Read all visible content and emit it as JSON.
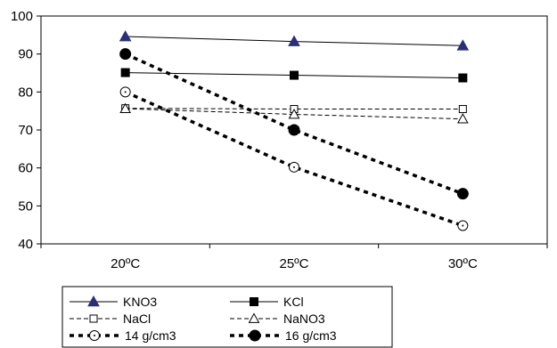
{
  "chart_data": {
    "type": "line",
    "title": "",
    "xlabel": "",
    "ylabel": "",
    "categories": [
      "20ºC",
      "25ºC",
      "30ºC"
    ],
    "ylim": [
      40,
      100
    ],
    "yticks": [
      "40",
      "50",
      "60",
      "70",
      "80",
      "90",
      "100"
    ],
    "grid": false,
    "legend_position": "bottom",
    "series": [
      {
        "name": "KNO3",
        "values": [
          94.6,
          93.3,
          92.2
        ],
        "line": "solid",
        "marker": "filled-triangle",
        "color": "#000000",
        "marker_color": "#2b2f7a"
      },
      {
        "name": "KCl",
        "values": [
          85.1,
          84.4,
          83.7
        ],
        "line": "solid",
        "marker": "filled-square",
        "color": "#000000",
        "marker_color": "#000000"
      },
      {
        "name": "NaCl",
        "values": [
          75.7,
          75.5,
          75.5
        ],
        "line": "dashed",
        "marker": "open-square",
        "color": "#000000",
        "marker_color": "#000000"
      },
      {
        "name": "NaNO3",
        "values": [
          75.6,
          74.1,
          72.9
        ],
        "line": "dashed",
        "marker": "open-triangle",
        "color": "#000000",
        "marker_color": "#000000"
      },
      {
        "name": "14 g/cm3",
        "values": [
          80.0,
          60.2,
          44.8
        ],
        "line": "heavy-dotted",
        "marker": "open-circle",
        "color": "#000000",
        "marker_color": "#000000"
      },
      {
        "name": "16 g/cm3",
        "values": [
          90.0,
          70.0,
          53.2
        ],
        "line": "heavy-dotted",
        "marker": "filled-circle",
        "color": "#000000",
        "marker_color": "#000000"
      }
    ]
  }
}
